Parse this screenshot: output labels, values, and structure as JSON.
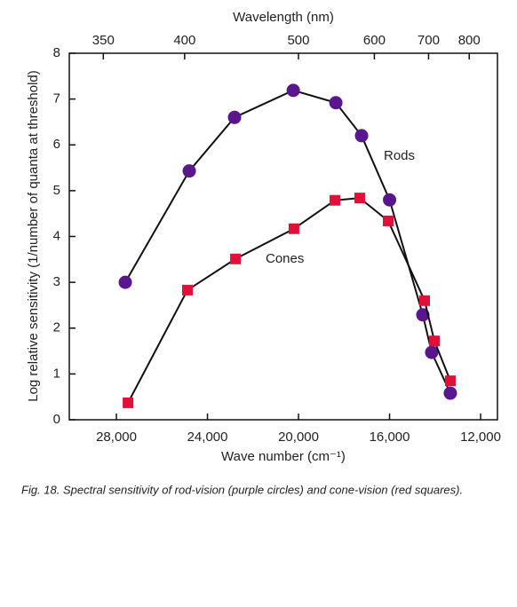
{
  "chart_data": {
    "type": "line",
    "x_label": "Wave number (cm⁻¹)",
    "x2_label": "Wavelength (nm)",
    "y_label": "Log relative sensitivity (1/number of quanta at threshold)",
    "caption": "Fig. 18. Spectral sensitivity of rod-vision (purple circles) and cone-vision (red squares).",
    "xlim": [
      30070,
      11260
    ],
    "xticks": [
      {
        "value": 28000,
        "label": "28,000"
      },
      {
        "value": 24000,
        "label": "24,000"
      },
      {
        "value": 20000,
        "label": "20,000"
      },
      {
        "value": 16000,
        "label": "16,000"
      },
      {
        "value": 12000,
        "label": "12,000"
      }
    ],
    "x2lim": [
      332.6,
      888.1
    ],
    "x2scale": "reciprocal",
    "x2ticks": [
      350,
      400,
      500,
      600,
      700,
      800
    ],
    "ylim": [
      0,
      8
    ],
    "yticks": [
      0,
      1,
      2,
      3,
      4,
      5,
      6,
      7,
      8
    ],
    "series": [
      {
        "name": "Rods",
        "color": "#5a168c",
        "marker": "circle",
        "x": [
          27610,
          24800,
          22810,
          20230,
          18360,
          17230,
          16000,
          14540,
          14150,
          13330
        ],
        "values": [
          3.0,
          5.43,
          6.6,
          7.19,
          6.92,
          6.2,
          4.8,
          2.29,
          1.47,
          0.58
        ]
      },
      {
        "name": "Cones",
        "color": "#e0103a",
        "marker": "square",
        "x": [
          27490,
          24880,
          22770,
          20200,
          18400,
          17310,
          16060,
          14460,
          14030,
          13330
        ],
        "values": [
          0.37,
          2.83,
          3.51,
          4.17,
          4.79,
          4.84,
          4.34,
          2.6,
          1.72,
          0.85
        ]
      }
    ]
  }
}
